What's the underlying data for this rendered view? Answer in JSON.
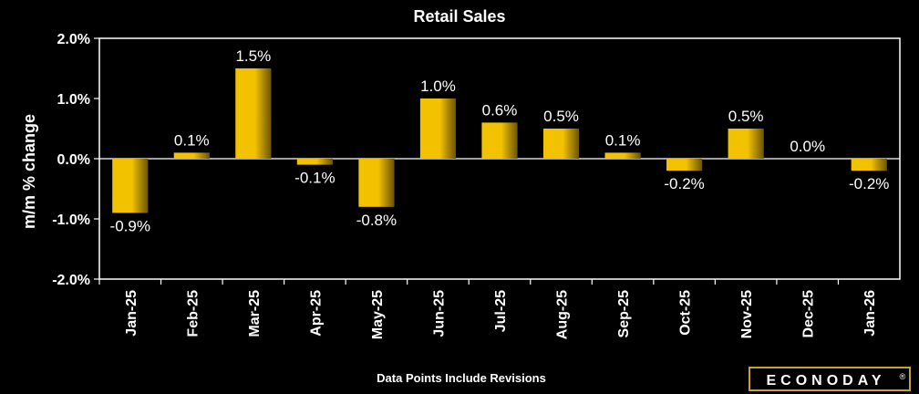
{
  "chart_data": {
    "type": "bar",
    "title": "Retail Sales",
    "ylabel": "m/m % change",
    "xlabel": "",
    "categories": [
      "Jan-25",
      "Feb-25",
      "Mar-25",
      "Apr-25",
      "May-25",
      "Jun-25",
      "Jul-25",
      "Aug-25",
      "Sep-25",
      "Oct-25",
      "Nov-25",
      "Dec-25",
      "Jan-26"
    ],
    "values": [
      -0.9,
      0.1,
      1.5,
      -0.1,
      -0.8,
      1.0,
      0.6,
      0.5,
      0.1,
      -0.2,
      0.5,
      0.0,
      -0.2
    ],
    "data_labels": [
      "-0.9%",
      "0.1%",
      "1.5%",
      "-0.1%",
      "-0.8%",
      "1.0%",
      "0.6%",
      "0.5%",
      "0.1%",
      "-0.2%",
      "0.5%",
      "0.0%",
      "-0.2%"
    ],
    "ylim": [
      -2.0,
      2.0
    ],
    "yticks": [
      2.0,
      1.0,
      0.0,
      -1.0,
      -2.0
    ],
    "ytick_labels": [
      "2.0%",
      "1.0%",
      "0.0%",
      "-1.0%",
      "-2.0%"
    ],
    "grid": false,
    "bar_color": "#f2c200",
    "bar_dark_color": "#6b5400",
    "background": "#000000",
    "footnote": "Data Points Include Revisions"
  },
  "logo": {
    "text": "ECONODAY",
    "mark": "®",
    "border_color": "#c9a227"
  }
}
